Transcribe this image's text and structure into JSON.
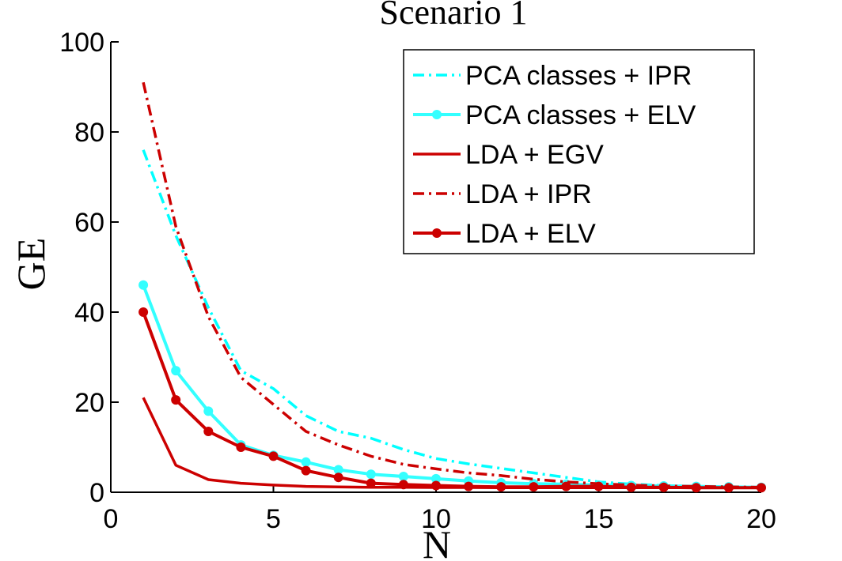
{
  "chart_data": {
    "type": "line",
    "title": "Scenario 1",
    "xlabel": "N",
    "ylabel": "GE",
    "xlim": [
      0,
      20
    ],
    "ylim": [
      0,
      100
    ],
    "xticks": [
      0,
      5,
      10,
      15,
      20
    ],
    "yticks": [
      0,
      20,
      40,
      60,
      80,
      100
    ],
    "grid": false,
    "legend_position": "top-right",
    "x": [
      1,
      2,
      3,
      4,
      5,
      6,
      7,
      8,
      9,
      10,
      11,
      12,
      13,
      14,
      15,
      16,
      17,
      18,
      19,
      20
    ],
    "series": [
      {
        "name": "PCA classes + IPR",
        "color": "#00ffff",
        "style": "dashdot",
        "markers": false,
        "values": [
          76,
          57,
          41,
          27,
          23,
          17,
          13.5,
          12,
          9.5,
          7.5,
          6.3,
          5.3,
          4.3,
          3.3,
          2.3,
          1.8,
          1.5,
          1.3,
          1.2,
          1.1
        ]
      },
      {
        "name": "PCA classes + ELV",
        "color": "#33ffff",
        "style": "solid",
        "markers": true,
        "values": [
          46,
          27,
          18,
          10.5,
          8.2,
          6.7,
          5,
          4,
          3.5,
          3,
          2.5,
          2.1,
          1.9,
          1.8,
          1.6,
          1.5,
          1.4,
          1.3,
          1.2,
          1.1
        ]
      },
      {
        "name": "LDA + EGV",
        "color": "#cc0000",
        "style": "solid",
        "markers": false,
        "values": [
          21,
          6,
          2.8,
          2,
          1.6,
          1.3,
          1.2,
          1.1,
          1.1,
          1.05,
          1.05,
          1,
          1,
          1,
          1,
          1,
          1,
          1,
          1,
          1
        ]
      },
      {
        "name": "LDA + IPR",
        "color": "#cc0000",
        "style": "dashdot",
        "markers": false,
        "values": [
          91,
          59,
          39,
          25.5,
          19.5,
          13.5,
          10.5,
          8,
          6.2,
          5.2,
          4.3,
          3.7,
          2.9,
          2.3,
          1.9,
          1.6,
          1.4,
          1.3,
          1.2,
          1.1
        ]
      },
      {
        "name": "LDA + ELV",
        "color": "#cc0000",
        "style": "solid",
        "markers": true,
        "values": [
          40,
          20.5,
          13.5,
          10,
          8,
          4.8,
          3.3,
          2,
          1.7,
          1.5,
          1.3,
          1.2,
          1.2,
          1.3,
          1.3,
          1.1,
          1.1,
          1,
          1,
          1
        ]
      }
    ]
  }
}
